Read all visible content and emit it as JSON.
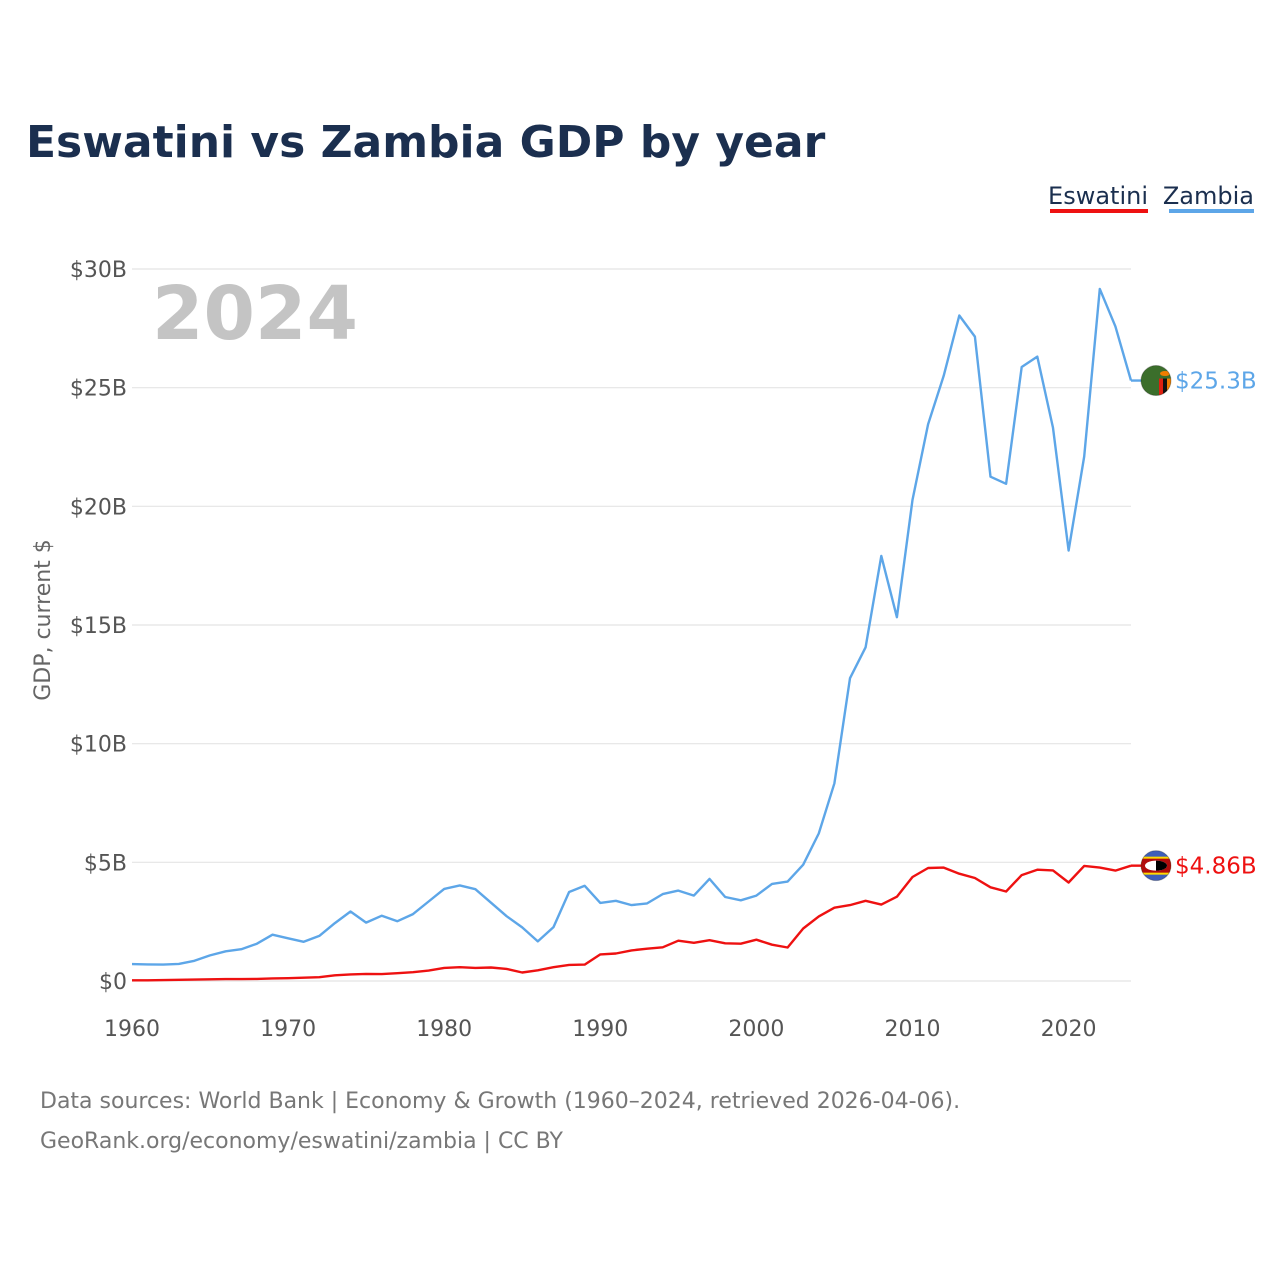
{
  "title": "Eswatini vs Zambia GDP by year",
  "highlight_year": "2024",
  "chart_data": {
    "type": "line",
    "title": "Eswatini vs Zambia GDP by year",
    "ylabel": "GDP, current $",
    "xlabel": "",
    "xlim": [
      1960,
      2024
    ],
    "ylim": [
      0,
      30
    ],
    "y_unit": "billions USD",
    "x_ticks": [
      1960,
      1970,
      1980,
      1990,
      2000,
      2010,
      2020
    ],
    "x_tick_labels": [
      "1960",
      "1970",
      "1980",
      "1990",
      "2000",
      "2010",
      "2020"
    ],
    "y_ticks": [
      0,
      5,
      10,
      15,
      20,
      25,
      30
    ],
    "y_tick_labels": [
      "$0",
      "$5B",
      "$10B",
      "$15B",
      "$20B",
      "$25B",
      "$30B"
    ],
    "grid": true,
    "legend_position": "top-right",
    "x": [
      1960,
      1961,
      1962,
      1963,
      1964,
      1965,
      1966,
      1967,
      1968,
      1969,
      1970,
      1971,
      1972,
      1973,
      1974,
      1975,
      1976,
      1977,
      1978,
      1979,
      1980,
      1981,
      1982,
      1983,
      1984,
      1985,
      1986,
      1987,
      1988,
      1989,
      1990,
      1991,
      1992,
      1993,
      1994,
      1995,
      1996,
      1997,
      1998,
      1999,
      2000,
      2001,
      2002,
      2003,
      2004,
      2005,
      2006,
      2007,
      2008,
      2009,
      2010,
      2011,
      2012,
      2013,
      2014,
      2015,
      2016,
      2017,
      2018,
      2019,
      2020,
      2021,
      2022,
      2023,
      2024
    ],
    "series": [
      {
        "name": "Eswatini",
        "color": "#ee1111",
        "end_label": "$4.86B",
        "flag": "eswatini-flag",
        "values": [
          0.03,
          0.03,
          0.04,
          0.05,
          0.06,
          0.07,
          0.08,
          0.08,
          0.09,
          0.11,
          0.12,
          0.14,
          0.16,
          0.24,
          0.28,
          0.3,
          0.29,
          0.33,
          0.37,
          0.44,
          0.55,
          0.58,
          0.55,
          0.57,
          0.51,
          0.36,
          0.45,
          0.58,
          0.68,
          0.69,
          1.12,
          1.16,
          1.29,
          1.36,
          1.42,
          1.7,
          1.61,
          1.72,
          1.59,
          1.57,
          1.74,
          1.53,
          1.41,
          2.21,
          2.72,
          3.09,
          3.2,
          3.38,
          3.22,
          3.55,
          4.38,
          4.76,
          4.78,
          4.52,
          4.34,
          3.95,
          3.77,
          4.46,
          4.69,
          4.66,
          4.15,
          4.85,
          4.78,
          4.65,
          4.86
        ]
      },
      {
        "name": "Zambia",
        "color": "#5da6e8",
        "end_label": "$25.3B",
        "flag": "zambia-flag",
        "values": [
          0.71,
          0.7,
          0.69,
          0.72,
          0.85,
          1.08,
          1.25,
          1.34,
          1.57,
          1.95,
          1.8,
          1.65,
          1.9,
          2.44,
          2.93,
          2.46,
          2.75,
          2.52,
          2.82,
          3.35,
          3.88,
          4.03,
          3.87,
          3.3,
          2.73,
          2.26,
          1.67,
          2.27,
          3.75,
          4.01,
          3.29,
          3.38,
          3.2,
          3.27,
          3.66,
          3.81,
          3.6,
          4.3,
          3.54,
          3.4,
          3.6,
          4.09,
          4.19,
          4.9,
          6.22,
          8.33,
          12.76,
          14.06,
          17.91,
          15.33,
          20.27,
          23.46,
          25.5,
          28.04,
          27.15,
          21.25,
          20.95,
          25.87,
          26.31,
          23.31,
          18.14,
          22.1,
          29.16,
          27.58,
          25.3
        ]
      }
    ]
  },
  "source": {
    "line1": "Data sources: World Bank | Economy & Growth (1960–2024, retrieved 2026-04-06).",
    "line2": "GeoRank.org/economy/eswatini/zambia | CC BY"
  }
}
